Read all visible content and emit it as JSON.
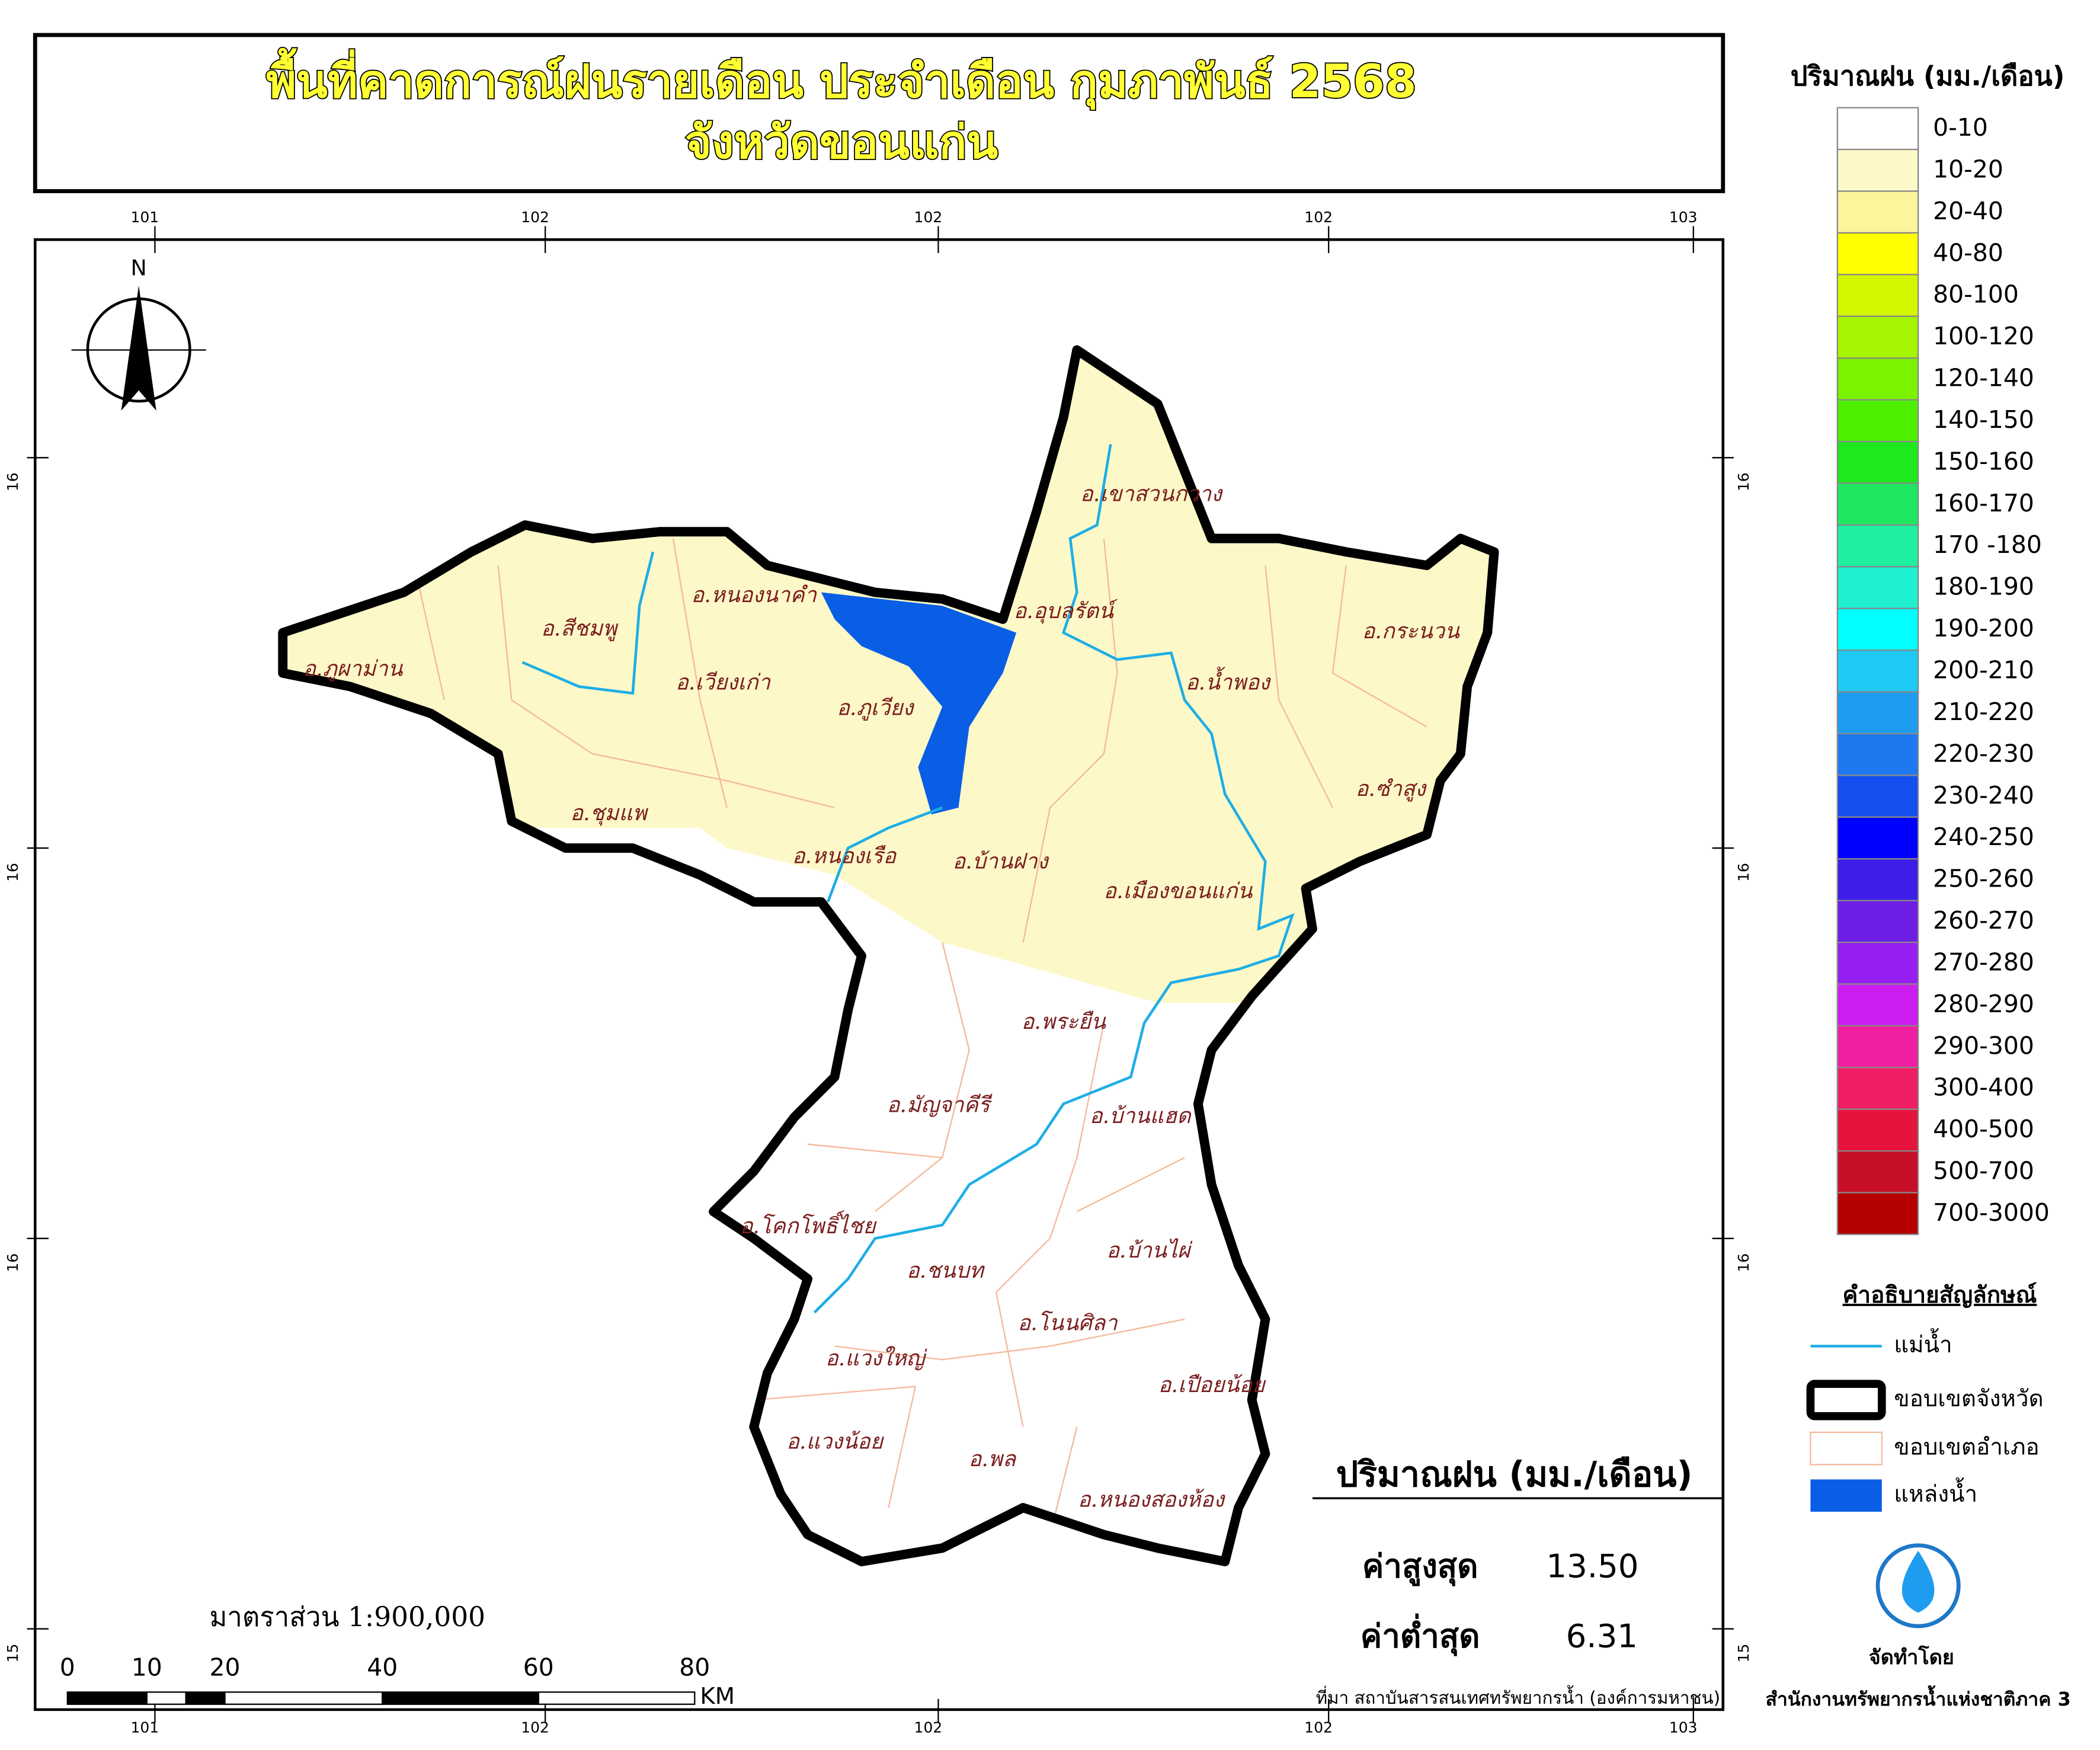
{
  "header": {
    "title_line1": "พื้นที่คาดการณ์ฝนรายเดือน ประจำเดือน กุมภาพันธ์ 2568",
    "title_line2": "จังหวัดขอนแก่น"
  },
  "grid_labels": {
    "top": [
      "101",
      "102",
      "102",
      "102",
      "103"
    ],
    "bottom": [
      "101",
      "102",
      "102",
      "102",
      "103"
    ],
    "left": [
      "16",
      "16",
      "16",
      "15"
    ],
    "right": [
      "16",
      "16",
      "16",
      "15"
    ]
  },
  "north": "N",
  "districts": [
    "อ.เขาสวนกวาง",
    "อ.สีชมพู",
    "อ.หนองนาคำ",
    "อ.อุบลรัตน์",
    "อ.กระนวน",
    "อ.ภูผาม่าน",
    "อ.เวียงเก่า",
    "อ.ภูเวียง",
    "อ.น้ำพอง",
    "อ.ซำสูง",
    "อ.ชุมแพ",
    "อ.หนองเรือ",
    "อ.บ้านฝาง",
    "อ.เมืองขอนแก่น",
    "อ.พระยืน",
    "อ.มัญจาคีรี",
    "อ.บ้านแฮด",
    "อ.โคกโพธิ์ไชย",
    "อ.ชนบท",
    "อ.บ้านไผ่",
    "อ.โนนศิลา",
    "อ.แวงใหญ่",
    "อ.เปือยน้อย",
    "อ.แวงน้อย",
    "อ.พล",
    "อ.หนองสองห้อง"
  ],
  "rain_legend": {
    "title": "ปริมาณฝน (มม./เดือน)",
    "classes": [
      {
        "label": "0-10",
        "color": "#ffffff"
      },
      {
        "label": "10-20",
        "color": "#fdf8c8"
      },
      {
        "label": "20-40",
        "color": "#fbf59b"
      },
      {
        "label": "40-80",
        "color": "#ffff00"
      },
      {
        "label": "80-100",
        "color": "#d4f700"
      },
      {
        "label": "100-120",
        "color": "#a6f500"
      },
      {
        "label": "120-140",
        "color": "#7af200"
      },
      {
        "label": "140-150",
        "color": "#4ef000"
      },
      {
        "label": "150-160",
        "color": "#1ee81e"
      },
      {
        "label": "160-170",
        "color": "#1ee860"
      },
      {
        "label": "170 -180",
        "color": "#1ef0a0"
      },
      {
        "label": "180-190",
        "color": "#1ef0d0"
      },
      {
        "label": "190-200",
        "color": "#00ffff"
      },
      {
        "label": "200-210",
        "color": "#1ecbf5"
      },
      {
        "label": "210-220",
        "color": "#1e9cf0"
      },
      {
        "label": "220-230",
        "color": "#1e78f0"
      },
      {
        "label": "230-240",
        "color": "#1450f0"
      },
      {
        "label": "240-250",
        "color": "#0000ff"
      },
      {
        "label": "250-260",
        "color": "#3c1ee6"
      },
      {
        "label": "260-270",
        "color": "#6e1ee6"
      },
      {
        "label": "270-280",
        "color": "#961ef0"
      },
      {
        "label": "280-290",
        "color": "#cc1ef0"
      },
      {
        "label": "290-300",
        "color": "#f01ea0"
      },
      {
        "label": "300-400",
        "color": "#f01e64"
      },
      {
        "label": "400-500",
        "color": "#e6143c"
      },
      {
        "label": "500-700",
        "color": "#c80f28"
      },
      {
        "label": "700-3000",
        "color": "#b40000"
      }
    ]
  },
  "symbol_legend": {
    "title": "คำอธิบายสัญลักษณ์",
    "items": [
      "แม่น้ำ",
      "ขอบเขตจังหวัด",
      "ขอบเขตอำเภอ",
      "แหล่งน้ำ"
    ]
  },
  "stats": {
    "title": "ปริมาณฝน (มม./เดือน)",
    "max_label": "ค่าสูงสุด",
    "max_value": "13.50",
    "min_label": "ค่าต่ำสุด",
    "min_value": "6.31"
  },
  "scale": {
    "text": "มาตราส่วน 1:900,000",
    "ticks": [
      "0",
      "10",
      "20",
      "40",
      "60",
      "80"
    ],
    "unit": "KM"
  },
  "source": "ที่มา  สถาบันสารสนเทศทรัพยากรน้ำ (องค์การมหาชน)",
  "credit": {
    "label": "จัดทำโดย",
    "org": "สำนักงานทรัพยากรน้ำแห่งชาติภาค 3"
  }
}
